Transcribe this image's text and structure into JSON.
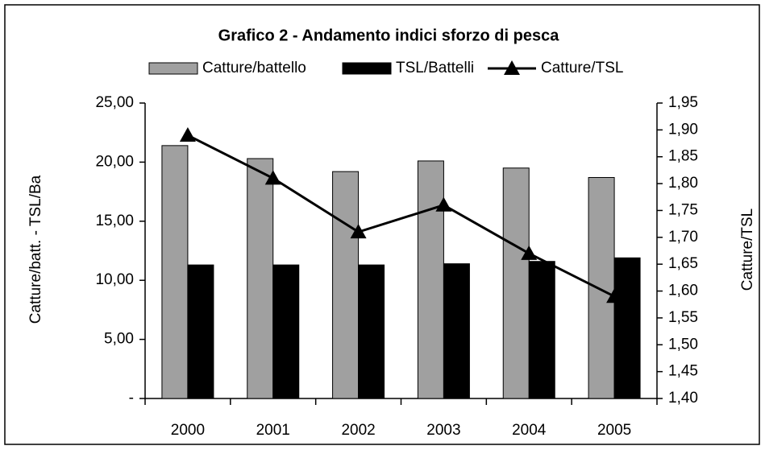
{
  "chart_data": {
    "type": "bar",
    "title": "Grafico 2 - Andamento indici sforzo di pesca",
    "categories": [
      "2000",
      "2001",
      "2002",
      "2003",
      "2004",
      "2005"
    ],
    "series": [
      {
        "name": "Catture/battello",
        "type": "bar",
        "color": "#a0a0a0",
        "values": [
          21.4,
          20.3,
          19.2,
          20.1,
          19.5,
          18.7
        ]
      },
      {
        "name": "TSL/Battelli",
        "type": "bar",
        "color": "#000000",
        "values": [
          11.3,
          11.3,
          11.3,
          11.4,
          11.6,
          11.9
        ]
      },
      {
        "name": "Catture/TSL",
        "type": "line",
        "axis": "y2",
        "color": "#000000",
        "values": [
          1.89,
          1.81,
          1.71,
          1.76,
          1.67,
          1.59
        ]
      }
    ],
    "ylabel": "Catture/batt. - TSL/Ba",
    "y2label": "Catture/TSL",
    "ylim": [
      0,
      25
    ],
    "yticks": [
      {
        "value": 0,
        "label": "-"
      },
      {
        "value": 5,
        "label": "5,00"
      },
      {
        "value": 10,
        "label": "10,00"
      },
      {
        "value": 15,
        "label": "15,00"
      },
      {
        "value": 20,
        "label": "20,00"
      },
      {
        "value": 25,
        "label": "25,00"
      }
    ],
    "y2lim": [
      1.4,
      1.95
    ],
    "y2ticks": [
      {
        "value": 1.4,
        "label": "1,40"
      },
      {
        "value": 1.45,
        "label": "1,45"
      },
      {
        "value": 1.5,
        "label": "1,50"
      },
      {
        "value": 1.55,
        "label": "1,55"
      },
      {
        "value": 1.6,
        "label": "1,60"
      },
      {
        "value": 1.65,
        "label": "1,65"
      },
      {
        "value": 1.7,
        "label": "1,70"
      },
      {
        "value": 1.75,
        "label": "1,75"
      },
      {
        "value": 1.8,
        "label": "1,80"
      },
      {
        "value": 1.85,
        "label": "1,85"
      },
      {
        "value": 1.9,
        "label": "1,90"
      },
      {
        "value": 1.95,
        "label": "1,95"
      }
    ],
    "legend": "top",
    "grid": false
  }
}
